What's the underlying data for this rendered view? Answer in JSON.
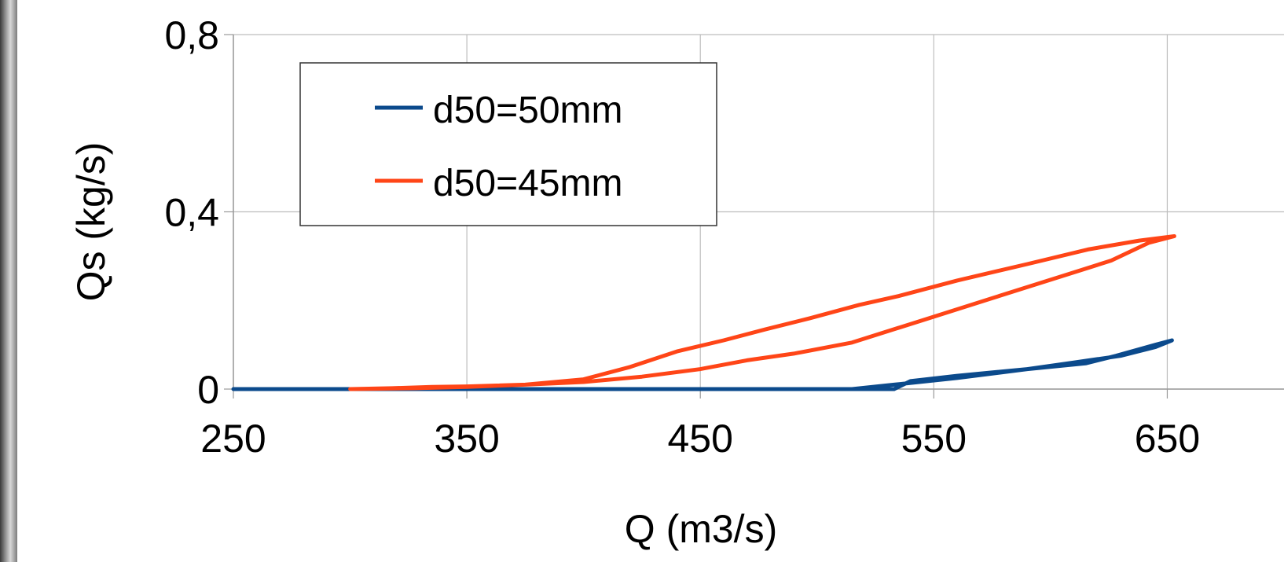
{
  "chart_data": {
    "type": "line",
    "title": "",
    "xlabel": "Q (m3/s)",
    "ylabel": "Qs (kg/s)",
    "xlim": [
      250,
      700
    ],
    "ylim": [
      0,
      0.8
    ],
    "x_ticks": [
      250,
      350,
      450,
      550,
      650
    ],
    "x_tick_labels": [
      "250",
      "350",
      "450",
      "550",
      "650"
    ],
    "y_ticks": [
      0,
      0.4,
      0.8
    ],
    "y_tick_labels": [
      "0",
      "0,4",
      "0,8"
    ],
    "grid": true,
    "legend_placement": "top-left",
    "series": [
      {
        "name": "d50=50mm",
        "color": "#0b4a8c",
        "points": [
          [
            250,
            0.0
          ],
          [
            300,
            0.0
          ],
          [
            350,
            0.0
          ],
          [
            400,
            0.0
          ],
          [
            450,
            0.0
          ],
          [
            500,
            0.0
          ],
          [
            515,
            0.0
          ],
          [
            533,
            0.01
          ],
          [
            560,
            0.025
          ],
          [
            590,
            0.045
          ],
          [
            610,
            0.06
          ],
          [
            630,
            0.075
          ],
          [
            645,
            0.095
          ],
          [
            652,
            0.11
          ],
          [
            645,
            0.1
          ],
          [
            628,
            0.075
          ],
          [
            615,
            0.058
          ],
          [
            590,
            0.045
          ],
          [
            560,
            0.03
          ],
          [
            540,
            0.018
          ],
          [
            533,
            0.0
          ],
          [
            500,
            0.0
          ],
          [
            400,
            0.0
          ],
          [
            300,
            0.0
          ],
          [
            250,
            0.0
          ]
        ]
      },
      {
        "name": "d50=45mm",
        "color": "#ff4517",
        "points": [
          [
            300,
            0.0
          ],
          [
            318,
            0.002
          ],
          [
            335,
            0.005
          ],
          [
            350,
            0.006
          ],
          [
            375,
            0.01
          ],
          [
            400,
            0.016
          ],
          [
            425,
            0.028
          ],
          [
            450,
            0.045
          ],
          [
            470,
            0.065
          ],
          [
            490,
            0.08
          ],
          [
            515,
            0.105
          ],
          [
            545,
            0.155
          ],
          [
            575,
            0.205
          ],
          [
            605,
            0.255
          ],
          [
            626,
            0.29
          ],
          [
            642,
            0.33
          ],
          [
            653,
            0.345
          ],
          [
            638,
            0.335
          ],
          [
            616,
            0.315
          ],
          [
            590,
            0.282
          ],
          [
            560,
            0.245
          ],
          [
            535,
            0.21
          ],
          [
            518,
            0.19
          ],
          [
            497,
            0.16
          ],
          [
            478,
            0.135
          ],
          [
            460,
            0.11
          ],
          [
            440,
            0.085
          ],
          [
            420,
            0.05
          ],
          [
            400,
            0.022
          ],
          [
            375,
            0.01
          ],
          [
            350,
            0.005
          ],
          [
            328,
            0.002
          ],
          [
            300,
            0.0
          ]
        ]
      }
    ]
  }
}
